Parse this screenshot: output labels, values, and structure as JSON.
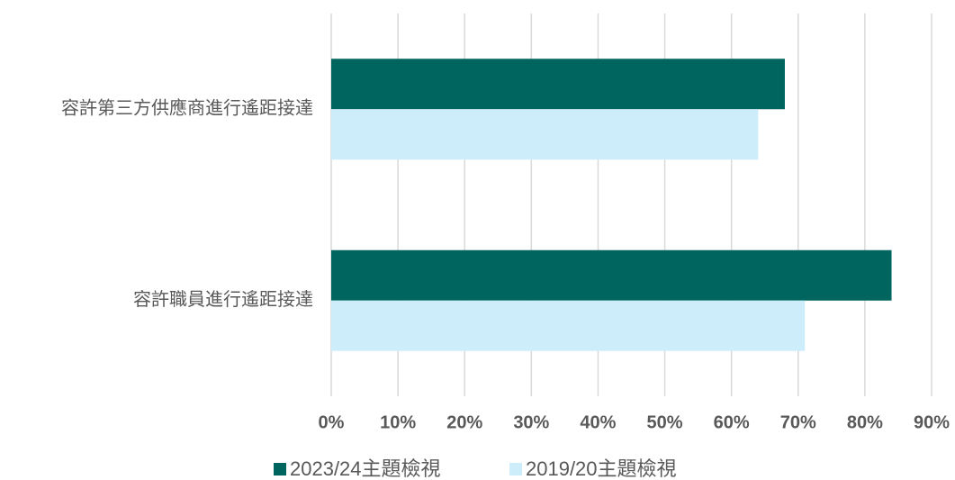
{
  "chart_data": {
    "type": "barh",
    "categories": [
      "容許第三方供應商進行遙距接達",
      "容許職員進行遙距接達"
    ],
    "series": [
      {
        "name": "2023/24主題檢視",
        "color": "#00655f",
        "values": [
          68,
          84
        ]
      },
      {
        "name": "2019/20主題檢視",
        "color": "#cdedfb",
        "values": [
          64,
          71
        ]
      }
    ],
    "xlim": [
      0,
      90
    ],
    "xticks": [
      {
        "value": 0,
        "label": "0%"
      },
      {
        "value": 10,
        "label": "10%"
      },
      {
        "value": 20,
        "label": "20%"
      },
      {
        "value": 30,
        "label": "30%"
      },
      {
        "value": 40,
        "label": "40%"
      },
      {
        "value": 50,
        "label": "50%"
      },
      {
        "value": 60,
        "label": "60%"
      },
      {
        "value": 70,
        "label": "70%"
      },
      {
        "value": 80,
        "label": "80%"
      },
      {
        "value": 90,
        "label": "90%"
      }
    ],
    "grid": true,
    "legend": "bottom"
  }
}
